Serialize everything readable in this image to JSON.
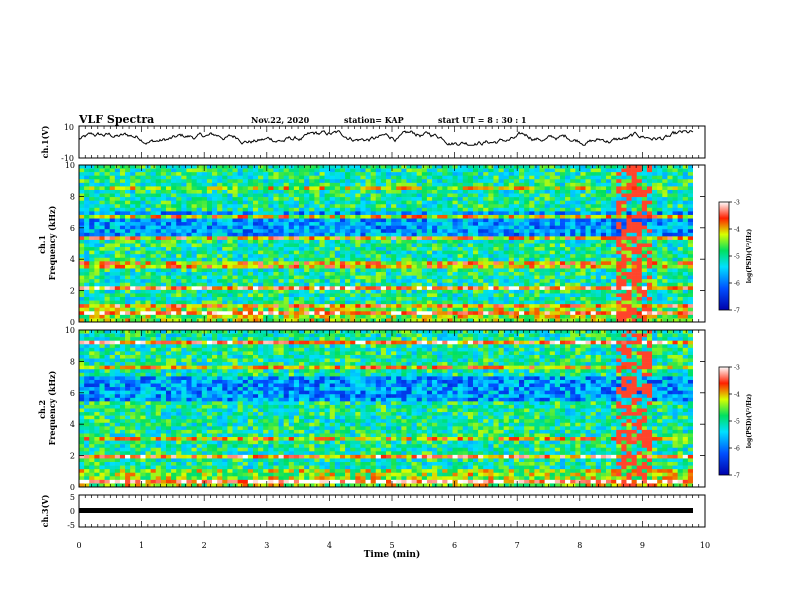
{
  "header": {
    "title": "VLF Spectra",
    "date": "Nov.22, 2020",
    "station": "station= KAP",
    "start_ut": "start  UT =   8  : 30 : 1"
  },
  "chart_data": [
    {
      "type": "line",
      "panel": "ch1-waveform",
      "ylabel": "ch.1(V)",
      "ylim": [
        -10,
        10
      ],
      "ytick_labels": [
        "10",
        "-10"
      ],
      "xlim": [
        0,
        10
      ],
      "trace_color": "#000000",
      "description_values": {
        "mean": 2,
        "amplitude_range": [
          -2,
          7
        ]
      }
    },
    {
      "type": "heatmap",
      "panel": "ch1-spectrogram",
      "ylabel": "ch.1\nFrequency  (kHz)",
      "ylim": [
        0,
        10
      ],
      "ytick_labels": [
        "0",
        "2",
        "4",
        "6",
        "8",
        "10"
      ],
      "xlim": [
        0,
        10
      ],
      "colorbar": {
        "label": "log(PSD)(V²/Hz)",
        "range": [
          -7,
          -3
        ],
        "tick_labels": [
          "-3",
          "-4",
          "-5",
          "-6",
          "-7"
        ]
      },
      "bands": [
        {
          "f": 0.5,
          "level": -3.4
        },
        {
          "f": 1.0,
          "level": -3.8
        },
        {
          "f": 2.2,
          "level": -3.5
        },
        {
          "f": 3.6,
          "level": -4.0
        },
        {
          "f": 5.4,
          "level": -3.9
        },
        {
          "f": 6.7,
          "level": -4.1
        },
        {
          "f": 8.6,
          "level": -4.3
        }
      ]
    },
    {
      "type": "heatmap",
      "panel": "ch2-spectrogram",
      "ylabel": "ch.2\nFrequency  (kHz)",
      "ylim": [
        0,
        10
      ],
      "ytick_labels": [
        "0",
        "2",
        "4",
        "6",
        "8",
        "10"
      ],
      "xlim": [
        0,
        10
      ],
      "colorbar": {
        "label": "log(PSD)(V²/Hz)",
        "range": [
          -7,
          -3
        ],
        "tick_labels": [
          "-3",
          "-4",
          "-5",
          "-6",
          "-7"
        ]
      },
      "bands": [
        {
          "f": 0.3,
          "level": -3.3
        },
        {
          "f": 1.9,
          "level": -3.6
        },
        {
          "f": 3.0,
          "level": -4.1
        },
        {
          "f": 7.6,
          "level": -4.0
        },
        {
          "f": 9.2,
          "level": -3.5
        }
      ]
    },
    {
      "type": "line",
      "panel": "ch3-waveform",
      "ylabel": "ch.3(V)",
      "ylim": [
        -5,
        5
      ],
      "ytick_labels": [
        "5",
        "0",
        "-5"
      ],
      "xlim": [
        0,
        10
      ],
      "xlabel": "Time  (min)",
      "xtick_labels": [
        "0",
        "1",
        "2",
        "3",
        "4",
        "5",
        "6",
        "7",
        "8",
        "9",
        "10"
      ],
      "trace_level": 0,
      "trace_color": "#000000"
    }
  ]
}
